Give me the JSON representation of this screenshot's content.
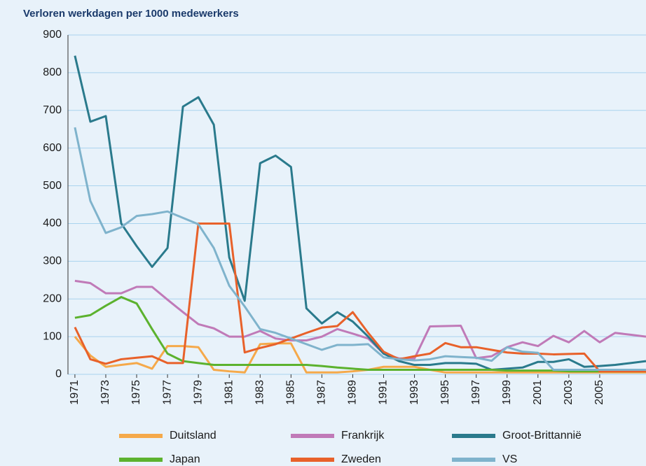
{
  "chart_data": {
    "type": "line",
    "title": "Verloren werkdagen per 1000 medewerkers",
    "x": [
      1971,
      1972,
      1973,
      1974,
      1975,
      1976,
      1977,
      1978,
      1979,
      1980,
      1981,
      1982,
      1983,
      1984,
      1985,
      1986,
      1987,
      1988,
      1989,
      1990,
      1991,
      1992,
      1993,
      1994,
      1995,
      1996,
      1997,
      1998,
      1999,
      2000,
      2001,
      2002,
      2003,
      2004,
      2005,
      2006,
      2007,
      2008
    ],
    "xlim": [
      1970.55,
      2008
    ],
    "xticks": [
      1971,
      1973,
      1975,
      1977,
      1979,
      1981,
      1983,
      1985,
      1987,
      1989,
      1991,
      1993,
      1995,
      1997,
      1999,
      2001,
      2003,
      2005
    ],
    "ylim": [
      0,
      900
    ],
    "yticks": [
      0,
      100,
      200,
      300,
      400,
      500,
      600,
      700,
      800,
      900
    ],
    "grid": true,
    "series": [
      {
        "name": "Duitsland",
        "color": "#f5a94a",
        "values": [
          100,
          50,
          20,
          25,
          30,
          15,
          75,
          75,
          72,
          12,
          8,
          5,
          80,
          82,
          82,
          5,
          5,
          5,
          8,
          12,
          20,
          20,
          20,
          12,
          5,
          5,
          5,
          5,
          5,
          5,
          5,
          5,
          5,
          5,
          5,
          5,
          5,
          5
        ]
      },
      {
        "name": "Frankrijk",
        "color": "#c07ab8",
        "values": [
          248,
          242,
          215,
          215,
          232,
          232,
          198,
          165,
          133,
          122,
          100,
          100,
          115,
          95,
          90,
          90,
          100,
          120,
          108,
          95,
          55,
          42,
          42,
          127,
          128,
          129,
          43,
          48,
          72,
          85,
          75,
          102,
          85,
          115,
          85,
          110,
          105,
          100
        ]
      },
      {
        "name": "Groot-Brittannië",
        "color": "#2a7a8c",
        "values": [
          845,
          670,
          685,
          400,
          340,
          285,
          335,
          710,
          735,
          662,
          310,
          195,
          560,
          580,
          550,
          175,
          135,
          165,
          140,
          100,
          55,
          35,
          25,
          25,
          30,
          30,
          28,
          12,
          15,
          18,
          33,
          33,
          40,
          20,
          22,
          25,
          30,
          35
        ]
      },
      {
        "name": "Japan",
        "color": "#5cb22e",
        "values": [
          150,
          157,
          182,
          205,
          188,
          120,
          55,
          35,
          30,
          25,
          25,
          25,
          25,
          25,
          25,
          25,
          22,
          18,
          15,
          12,
          12,
          12,
          12,
          12,
          12,
          12,
          12,
          12,
          10,
          10,
          10,
          10,
          8,
          8,
          8,
          8,
          8,
          8
        ]
      },
      {
        "name": "Zweden",
        "color": "#e8612a",
        "values": [
          125,
          40,
          28,
          40,
          44,
          48,
          30,
          30,
          400,
          400,
          400,
          58,
          70,
          80,
          95,
          110,
          124,
          128,
          165,
          110,
          60,
          40,
          48,
          55,
          83,
          72,
          72,
          65,
          58,
          55,
          55,
          53,
          54,
          55,
          8,
          8,
          8,
          8
        ]
      },
      {
        "name": "VS",
        "color": "#7fb3cc",
        "values": [
          655,
          460,
          375,
          390,
          420,
          425,
          432,
          415,
          398,
          335,
          235,
          180,
          120,
          110,
          95,
          80,
          65,
          78,
          78,
          80,
          45,
          40,
          37,
          40,
          48,
          46,
          44,
          36,
          72,
          60,
          57,
          12,
          12,
          12,
          12,
          12,
          12,
          12
        ]
      }
    ]
  }
}
